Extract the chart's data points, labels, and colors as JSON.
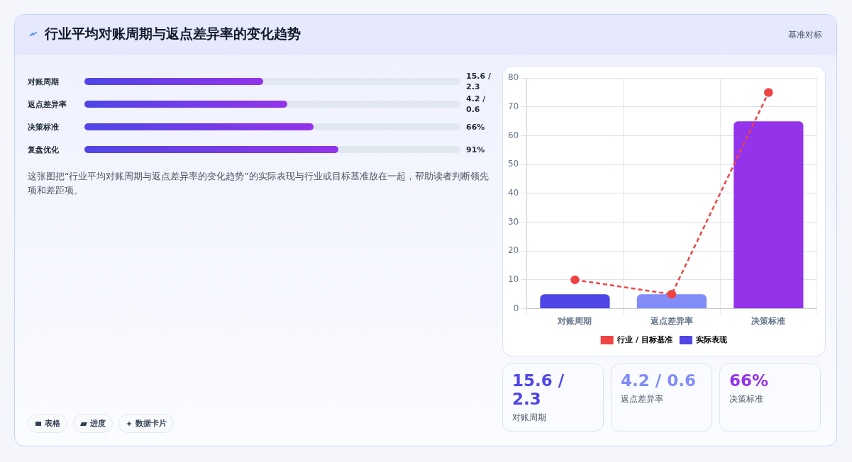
{
  "chart_data": [
    {
      "type": "other",
      "title": "行业平均对账周期与返点差异率的变化趋势",
      "subtitle": "基准对标",
      "categories": [
        "对账周期",
        "返点差异率",
        "决策标准",
        "复盘优化"
      ],
      "annotations": [
        "15.6 / 2.3",
        "4.2 / 0.6",
        "66%",
        "91%",
        "这张图把“行业平均对账周期与返点差异率的变化趋势”的实际表现与行业或目标基准放在一起，帮助读者判断领先项和差距项。",
        "表格",
        "进度",
        "数据卡片"
      ]
    },
    {
      "type": "bar",
      "categories": [
        "对账周期",
        "返点差异率",
        "决策标准"
      ],
      "series": [
        {
          "name": "行业 / 目标基准",
          "type": "line",
          "color": "#ef4444",
          "values": [
            10,
            5,
            75
          ],
          "line_style": "dashed",
          "marker": "circle"
        },
        {
          "name": "实际表现",
          "type": "bar",
          "color": "#4f46e5",
          "colors": [
            "#4f46e5",
            "#818cf8",
            "#9333ea"
          ],
          "values": [
            5,
            5,
            65
          ]
        }
      ],
      "ylim": [
        0,
        80
      ],
      "yticks": [
        0,
        10,
        20,
        30,
        40,
        50,
        60,
        70,
        80
      ],
      "grid": true,
      "legend": "bottom"
    },
    {
      "type": "other",
      "annotations": [
        "15.6 / 2.3",
        "对账周期",
        "4.2 / 0.6",
        "返点差异率",
        "66%",
        "决策标准"
      ]
    }
  ]
}
